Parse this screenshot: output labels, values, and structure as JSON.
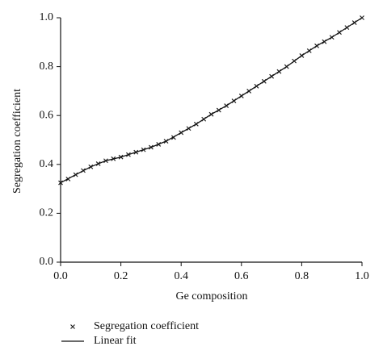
{
  "chart_data": {
    "type": "line",
    "xlabel": "Ge composition",
    "ylabel": "Segregation coefficient",
    "xlim": [
      0,
      1
    ],
    "ylim": [
      0,
      1
    ],
    "xticks": [
      {
        "value": 0,
        "label": "0.0"
      },
      0.2,
      0.4,
      0.6,
      0.8,
      {
        "value": 1,
        "label": "1.0"
      }
    ],
    "yticks": [
      {
        "value": 0,
        "label": "0.0"
      },
      0.2,
      0.4,
      0.6,
      0.8,
      {
        "value": 1,
        "label": "1.0"
      }
    ],
    "legend": "bottom-left",
    "series": [
      {
        "name": "Segregation coefficient",
        "marker": "x",
        "color": "#222222",
        "x": [
          0,
          0.025,
          0.05,
          0.075,
          0.1,
          0.125,
          0.15,
          0.175,
          0.2,
          0.225,
          0.25,
          0.275,
          0.3,
          0.325,
          0.35,
          0.375,
          0.4,
          0.425,
          0.45,
          0.475,
          0.5,
          0.525,
          0.55,
          0.575,
          0.6,
          0.625,
          0.65,
          0.675,
          0.7,
          0.725,
          0.75,
          0.775,
          0.8,
          0.825,
          0.85,
          0.875,
          0.9,
          0.925,
          0.95,
          0.975,
          1
        ],
        "values": [
          0.325,
          0.34,
          0.358,
          0.375,
          0.39,
          0.403,
          0.415,
          0.423,
          0.43,
          0.44,
          0.45,
          0.46,
          0.47,
          0.482,
          0.495,
          0.51,
          0.53,
          0.547,
          0.565,
          0.585,
          0.605,
          0.622,
          0.64,
          0.66,
          0.68,
          0.7,
          0.72,
          0.74,
          0.76,
          0.78,
          0.8,
          0.823,
          0.845,
          0.865,
          0.885,
          0.902,
          0.92,
          0.94,
          0.96,
          0.98,
          1.0
        ]
      },
      {
        "name": "Linear fit",
        "marker": "line",
        "color": "#111111",
        "x": [
          0,
          0.05,
          0.1,
          0.15,
          0.2,
          0.25,
          0.3,
          0.35,
          0.4,
          0.45,
          0.5,
          0.55,
          0.6,
          0.65,
          0.7,
          0.75,
          0.8,
          0.85,
          0.9,
          0.95,
          1
        ],
        "values": [
          0.325,
          0.358,
          0.39,
          0.415,
          0.43,
          0.45,
          0.47,
          0.495,
          0.53,
          0.565,
          0.605,
          0.64,
          0.68,
          0.72,
          0.76,
          0.8,
          0.845,
          0.885,
          0.92,
          0.96,
          1.0
        ]
      }
    ]
  }
}
